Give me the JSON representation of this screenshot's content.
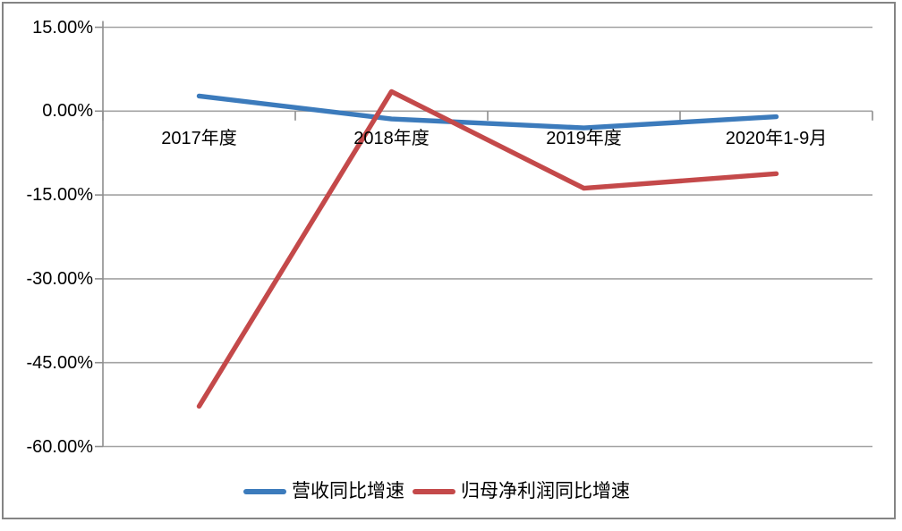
{
  "chart_data": {
    "type": "line",
    "title": "",
    "xlabel": "",
    "ylabel": "",
    "unit": "%",
    "categories": [
      "2017年度",
      "2018年度",
      "2019年度",
      "2020年1-9月"
    ],
    "series": [
      {
        "name": "营收同比增速",
        "color": "#3C7BBC",
        "values": [
          2.7,
          -1.4,
          -3.0,
          -1.0
        ]
      },
      {
        "name": "归母净利润同比增速",
        "color": "#C4494A",
        "values": [
          -52.8,
          3.5,
          -13.8,
          -11.2
        ]
      }
    ],
    "y_axis": {
      "min": -60,
      "max": 15,
      "ticks": [
        {
          "label": "15.00%",
          "value": 15
        },
        {
          "label": "0.00%",
          "value": 0
        },
        {
          "label": "-15.00%",
          "value": -15
        },
        {
          "label": "-30.00%",
          "value": -30
        },
        {
          "label": "-45.00%",
          "value": -45
        },
        {
          "label": "-60.00%",
          "value": -60
        }
      ]
    },
    "grid": true,
    "legend_position": "bottom"
  },
  "style": {
    "grid_color": "#A3A3A3",
    "axis_color": "#8E8E8E",
    "border_color": "#848484",
    "text_color": "#000000",
    "background": "#FFFFFF"
  }
}
